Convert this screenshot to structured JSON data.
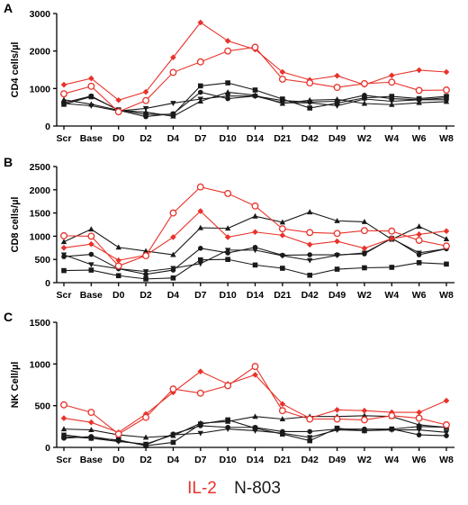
{
  "legend": {
    "il2": {
      "label": "IL-2",
      "color": "#e8322a"
    },
    "n803": {
      "label": "N-803",
      "color": "#1a1a1a"
    }
  },
  "chart_data": [
    {
      "type": "line",
      "panel": "A",
      "ylabel": "CD4 cells/µl",
      "ylim": [
        0,
        3000
      ],
      "yticks": [
        0,
        1000,
        2000,
        3000
      ],
      "categories": [
        "Scr",
        "Base",
        "D0",
        "D2",
        "D4",
        "D7",
        "D10",
        "D14",
        "D21",
        "D42",
        "D49",
        "W2",
        "W4",
        "W6",
        "W8"
      ],
      "series": [
        {
          "group": "il2",
          "marker": "diamond",
          "values": [
            1100,
            1270,
            690,
            910,
            1830,
            2760,
            2270,
            2040,
            1440,
            1230,
            1340,
            1100,
            1350,
            1490,
            1440
          ]
        },
        {
          "group": "il2",
          "marker": "circle-open",
          "values": [
            860,
            1060,
            380,
            680,
            1430,
            1710,
            2000,
            2100,
            1250,
            1150,
            1030,
            1130,
            1170,
            950,
            960
          ]
        },
        {
          "group": "n803",
          "marker": "square",
          "values": [
            580,
            780,
            430,
            310,
            310,
            1070,
            1150,
            960,
            720,
            480,
            610,
            750,
            790,
            730,
            790
          ]
        },
        {
          "group": "n803",
          "marker": "circle",
          "values": [
            620,
            800,
            420,
            250,
            330,
            900,
            730,
            800,
            680,
            640,
            660,
            820,
            730,
            700,
            700
          ]
        },
        {
          "group": "n803",
          "marker": "triangle-up",
          "values": [
            700,
            580,
            420,
            370,
            260,
            660,
            900,
            820,
            600,
            690,
            710,
            600,
            570,
            620,
            650
          ]
        },
        {
          "group": "n803",
          "marker": "triangle-down",
          "values": [
            600,
            540,
            400,
            470,
            610,
            720,
            800,
            800,
            620,
            620,
            540,
            720,
            660,
            700,
            750
          ]
        }
      ]
    },
    {
      "type": "line",
      "panel": "B",
      "ylabel": "CD8 cells/µl",
      "ylim": [
        0,
        2500
      ],
      "yticks": [
        0,
        500,
        1000,
        1500,
        2000,
        2500
      ],
      "categories": [
        "Scr",
        "Base",
        "D0",
        "D2",
        "D4",
        "D7",
        "D10",
        "D14",
        "D21",
        "D42",
        "D49",
        "W2",
        "W4",
        "W6",
        "W8"
      ],
      "series": [
        {
          "group": "il2",
          "marker": "diamond",
          "values": [
            750,
            830,
            480,
            590,
            980,
            1540,
            980,
            1090,
            1020,
            820,
            890,
            740,
            950,
            1040,
            1110
          ]
        },
        {
          "group": "il2",
          "marker": "circle-open",
          "values": [
            1010,
            1000,
            360,
            580,
            1500,
            2060,
            1920,
            1650,
            1160,
            1080,
            1060,
            1120,
            1110,
            910,
            790
          ]
        },
        {
          "group": "n803",
          "marker": "triangle-up",
          "values": [
            880,
            1150,
            760,
            680,
            600,
            1180,
            1170,
            1430,
            1300,
            1520,
            1330,
            1310,
            930,
            1210,
            940
          ]
        },
        {
          "group": "n803",
          "marker": "circle",
          "values": [
            560,
            610,
            300,
            180,
            270,
            740,
            640,
            760,
            590,
            600,
            600,
            620,
            960,
            600,
            730
          ]
        },
        {
          "group": "n803",
          "marker": "square",
          "values": [
            260,
            270,
            150,
            80,
            100,
            490,
            500,
            380,
            310,
            160,
            290,
            320,
            330,
            430,
            400
          ]
        },
        {
          "group": "n803",
          "marker": "triangle-down",
          "values": [
            600,
            390,
            300,
            240,
            310,
            410,
            700,
            700,
            580,
            480,
            590,
            640,
            950,
            640,
            730
          ]
        }
      ]
    },
    {
      "type": "line",
      "panel": "C",
      "ylabel": "NK Cell/µl",
      "ylim": [
        0,
        1500
      ],
      "yticks": [
        0,
        500,
        1000,
        1500
      ],
      "categories": [
        "Scr",
        "Base",
        "D0",
        "D2",
        "D4",
        "D7",
        "D10",
        "D14",
        "D21",
        "D42",
        "D49",
        "W2",
        "W4",
        "W6",
        "W8"
      ],
      "series": [
        {
          "group": "il2",
          "marker": "diamond",
          "values": [
            350,
            300,
            180,
            400,
            660,
            910,
            760,
            870,
            520,
            350,
            450,
            440,
            420,
            420,
            560
          ]
        },
        {
          "group": "il2",
          "marker": "circle-open",
          "values": [
            510,
            420,
            160,
            360,
            700,
            650,
            740,
            970,
            440,
            340,
            340,
            330,
            380,
            350,
            270
          ]
        },
        {
          "group": "n803",
          "marker": "triangle-up",
          "values": [
            220,
            210,
            150,
            120,
            140,
            290,
            310,
            370,
            340,
            370,
            370,
            380,
            370,
            270,
            240
          ]
        },
        {
          "group": "n803",
          "marker": "square",
          "values": [
            130,
            110,
            90,
            20,
            60,
            280,
            330,
            230,
            160,
            80,
            230,
            200,
            220,
            250,
            240
          ]
        },
        {
          "group": "n803",
          "marker": "circle",
          "values": [
            110,
            130,
            80,
            30,
            160,
            260,
            240,
            240,
            190,
            190,
            220,
            220,
            220,
            150,
            140
          ]
        },
        {
          "group": "n803",
          "marker": "triangle-down",
          "values": [
            150,
            110,
            70,
            40,
            150,
            170,
            220,
            200,
            170,
            120,
            210,
            200,
            210,
            210,
            180
          ]
        }
      ]
    }
  ]
}
